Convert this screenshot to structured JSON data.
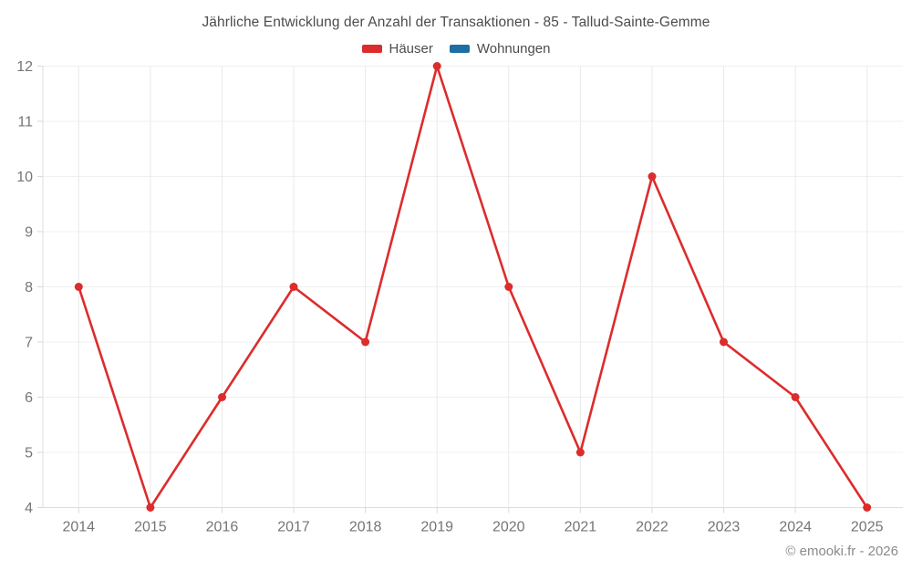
{
  "chart_data": {
    "type": "line",
    "title": "Jährliche Entwicklung der Anzahl der Transaktionen - 85 - Tallud-Sainte-Gemme",
    "categories": [
      "2014",
      "2015",
      "2016",
      "2017",
      "2018",
      "2019",
      "2020",
      "2021",
      "2022",
      "2023",
      "2024",
      "2025"
    ],
    "series": [
      {
        "name": "Häuser",
        "color": "#dc2c2c",
        "values": [
          8,
          4,
          6,
          8,
          7,
          12,
          8,
          5,
          10,
          7,
          6,
          4
        ]
      },
      {
        "name": "Wohnungen",
        "color": "#1c6ea4",
        "values": []
      }
    ],
    "ylim": [
      4,
      12
    ],
    "ytick_step": 1,
    "grid": true,
    "legend_position": "top",
    "xlabel": "",
    "ylabel": "",
    "colors": {
      "grid_horizontal": "#f0f0f0",
      "grid_vertical": "#eaeaea",
      "axis_border": "#dedede",
      "tick_mark": "#d9d9d9",
      "tick_label": "#757575",
      "title_text": "#4c4c4c"
    }
  },
  "footer": {
    "credit": "© emooki.fr - 2026"
  }
}
